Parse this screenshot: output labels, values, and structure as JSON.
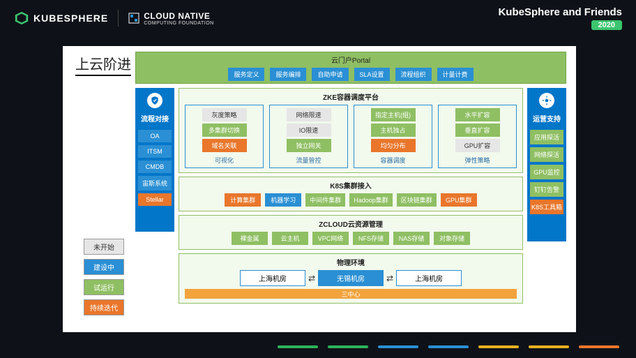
{
  "header": {
    "kubesphere": "KUBESPHERE",
    "cncf_main": "CLOUD NATIVE",
    "cncf_sub": "COMPUTING FOUNDATION",
    "right_title": "KubeSphere and Friends",
    "year": "2020"
  },
  "colors": {
    "blue": "#2a8fd4",
    "deep_blue": "#0276c9",
    "green": "#8fbf63",
    "orange": "#e9762b",
    "yellow": "#f2a33c",
    "gray_box": "#e6e6e6",
    "white": "#ffffff",
    "ks_green": "#3cc46e"
  },
  "slide": {
    "title": "上云阶进"
  },
  "legend": [
    {
      "label": "未开始",
      "bg": "#e6e6e6",
      "fg": "#333333"
    },
    {
      "label": "建设中",
      "bg": "#2a8fd4",
      "fg": "#ffffff"
    },
    {
      "label": "试运行",
      "bg": "#8fbf63",
      "fg": "#ffffff"
    },
    {
      "label": "持续迭代",
      "bg": "#e9762b",
      "fg": "#ffffff"
    }
  ],
  "left_col": {
    "title": "流程对接",
    "icon": "shield-icon",
    "items": [
      {
        "label": "OA",
        "bg": "#2a8fd4"
      },
      {
        "label": "ITSM",
        "bg": "#2a8fd4"
      },
      {
        "label": "CMDB",
        "bg": "#2a8fd4"
      },
      {
        "label": "宙斯系统",
        "bg": "#2a8fd4"
      },
      {
        "label": "Stellar",
        "bg": "#e9762b"
      }
    ]
  },
  "right_col": {
    "title": "运营支持",
    "icon": "gear-icon",
    "items": [
      {
        "label": "应用探活",
        "bg": "#8fbf63"
      },
      {
        "label": "网络探活",
        "bg": "#8fbf63"
      },
      {
        "label": "GPU监控",
        "bg": "#8fbf63"
      },
      {
        "label": "钉钉告警",
        "bg": "#8fbf63"
      },
      {
        "label": "K8S工具箱",
        "bg": "#e9762b"
      }
    ]
  },
  "portal": {
    "title": "云门户Portal",
    "items": [
      "服务定义",
      "服务编排",
      "自助申请",
      "SLA设置",
      "流程组织",
      "计量计费"
    ]
  },
  "zke": {
    "title": "ZKE容器调度平台",
    "cols": [
      {
        "title": "可视化",
        "cells": [
          {
            "label": "灰度策略",
            "bg": "#e6e6e6",
            "fg": "#333"
          },
          {
            "label": "多集群切换",
            "bg": "#8fbf63",
            "fg": "#fff"
          },
          {
            "label": "域名关联",
            "bg": "#e9762b",
            "fg": "#fff"
          }
        ]
      },
      {
        "title": "流量管控",
        "cells": [
          {
            "label": "网络限速",
            "bg": "#e6e6e6",
            "fg": "#333"
          },
          {
            "label": "IO限速",
            "bg": "#e6e6e6",
            "fg": "#333"
          },
          {
            "label": "独立网关",
            "bg": "#8fbf63",
            "fg": "#fff"
          }
        ]
      },
      {
        "title": "容器调度",
        "cells": [
          {
            "label": "指定主机(组)",
            "bg": "#8fbf63",
            "fg": "#fff"
          },
          {
            "label": "主机独占",
            "bg": "#8fbf63",
            "fg": "#fff"
          },
          {
            "label": "均匀分布",
            "bg": "#e9762b",
            "fg": "#fff"
          }
        ]
      },
      {
        "title": "弹性策略",
        "cells": [
          {
            "label": "水平扩容",
            "bg": "#8fbf63",
            "fg": "#fff"
          },
          {
            "label": "垂直扩容",
            "bg": "#8fbf63",
            "fg": "#fff"
          },
          {
            "label": "GPU扩容",
            "bg": "#e6e6e6",
            "fg": "#333"
          }
        ]
      }
    ]
  },
  "k8s_access": {
    "title": "K8S集群接入",
    "items": [
      {
        "label": "计算集群",
        "bg": "#e9762b",
        "fg": "#fff"
      },
      {
        "label": "机器学习",
        "bg": "#2a8fd4",
        "fg": "#fff"
      },
      {
        "label": "中间件集群",
        "bg": "#8fbf63",
        "fg": "#fff"
      },
      {
        "label": "Hadoop集群",
        "bg": "#8fbf63",
        "fg": "#fff"
      },
      {
        "label": "区块链集群",
        "bg": "#8fbf63",
        "fg": "#fff"
      },
      {
        "label": "GPU集群",
        "bg": "#e9762b",
        "fg": "#fff"
      }
    ]
  },
  "zcloud": {
    "title": "ZCLOUD云资源管理",
    "items": [
      {
        "label": "裸金属",
        "bg": "#8fbf63",
        "fg": "#fff"
      },
      {
        "label": "云主机",
        "bg": "#8fbf63",
        "fg": "#fff"
      },
      {
        "label": "VPC网络",
        "bg": "#8fbf63",
        "fg": "#fff"
      },
      {
        "label": "NFS存储",
        "bg": "#8fbf63",
        "fg": "#fff"
      },
      {
        "label": "NAS存储",
        "bg": "#8fbf63",
        "fg": "#fff"
      },
      {
        "label": "对象存储",
        "bg": "#8fbf63",
        "fg": "#fff"
      }
    ]
  },
  "phys": {
    "title": "物理环境",
    "left": "上海机房",
    "center": "无锡机房",
    "right": "上海机房",
    "tri_center": "三中心"
  },
  "bottom_segments": [
    "#2eb35a",
    "#2eb35a",
    "#2a8fd4",
    "#2a8fd4",
    "#e9b020",
    "#e9b020",
    "#e9762b"
  ]
}
